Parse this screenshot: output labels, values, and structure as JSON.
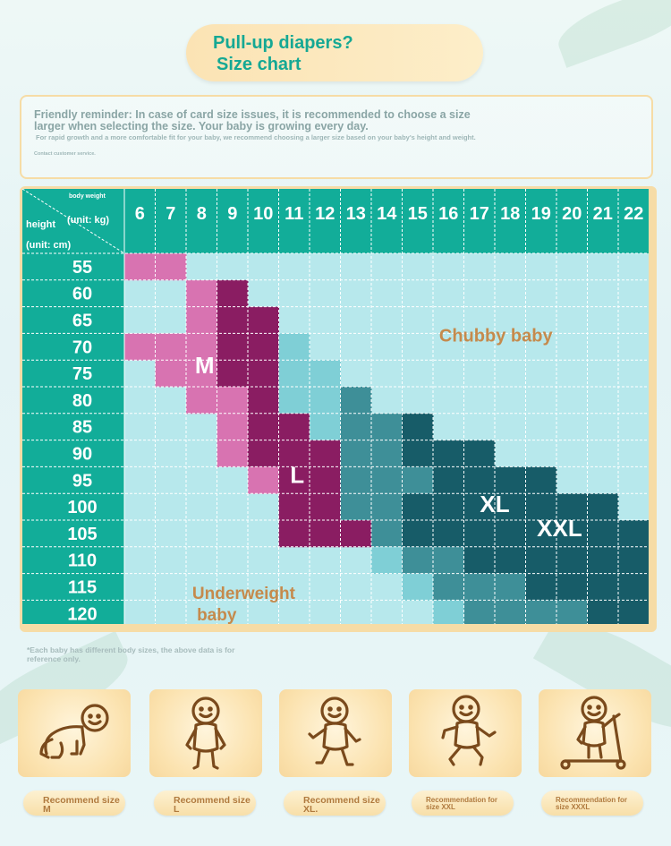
{
  "header": {
    "title_line1": "Pull-up diapers?",
    "title_line2": "Size chart"
  },
  "reminder": {
    "main": "Friendly reminder: In case of card size issues, it is recommended to choose a size larger when selecting the size. Your baby is growing every day.",
    "sub": "For rapid growth and a more comfortable fit for your baby, we recommend choosing a larger size based on your baby's height and weight.",
    "contact": "Contact customer service."
  },
  "chart_data": {
    "type": "heatmap",
    "corner": {
      "weight_label": "body weight",
      "weight_unit": "(unit: kg)",
      "height_label": "height",
      "height_unit": "(unit: cm)"
    },
    "x_weights_kg": [
      6,
      7,
      8,
      9,
      10,
      11,
      12,
      13,
      14,
      15,
      16,
      17,
      18,
      19,
      20,
      21,
      22
    ],
    "y_heights_cm": [
      55,
      60,
      65,
      70,
      75,
      80,
      85,
      90,
      95,
      100,
      105,
      110,
      115,
      120
    ],
    "sizes": [
      {
        "label": "M",
        "color": "#d873b1"
      },
      {
        "label": "L",
        "color": "#8a1d62"
      },
      {
        "label": "XL",
        "color": "#7fcfd6"
      },
      {
        "label": "XXL",
        "color": "#3e8f98"
      },
      {
        "label": "XXXL",
        "color": "#175c68"
      }
    ],
    "grid": [
      "MM...............",
      "..ML.............",
      "..MLL............",
      "MMMLLX...........",
      ".MMLLXX..........",
      "..MMLXXY.........",
      "...MLLXYYZ.......",
      "...MLLLYYZZZ.....",
      "....MLLYYYZZZZ...",
      ".....LLYYZZZZZZZ.",
      ".....LLLYZZZZZZZZ",
      "........XYYZZZZZZ",
      ".........XYYYZZZZ",
      "..........XYYYYZZ"
    ],
    "annotations": [
      "Chubby baby",
      "Underweight baby"
    ],
    "empty_color": "#b7e8ec",
    "header_color": "#12ad99"
  },
  "footnote": "*Each baby has different body sizes, the above data is for reference only.",
  "recommendations": [
    {
      "label": "Recommend size M",
      "icon": "crawling-baby-icon"
    },
    {
      "label": "Recommend size L",
      "icon": "standing-baby-icon"
    },
    {
      "label": "Recommend size XL.",
      "icon": "walking-baby-icon"
    },
    {
      "label": "Recommendation for size XXL",
      "icon": "running-baby-icon"
    },
    {
      "label": "Recommendation for size XXXL",
      "icon": "scooter-baby-icon"
    }
  ]
}
